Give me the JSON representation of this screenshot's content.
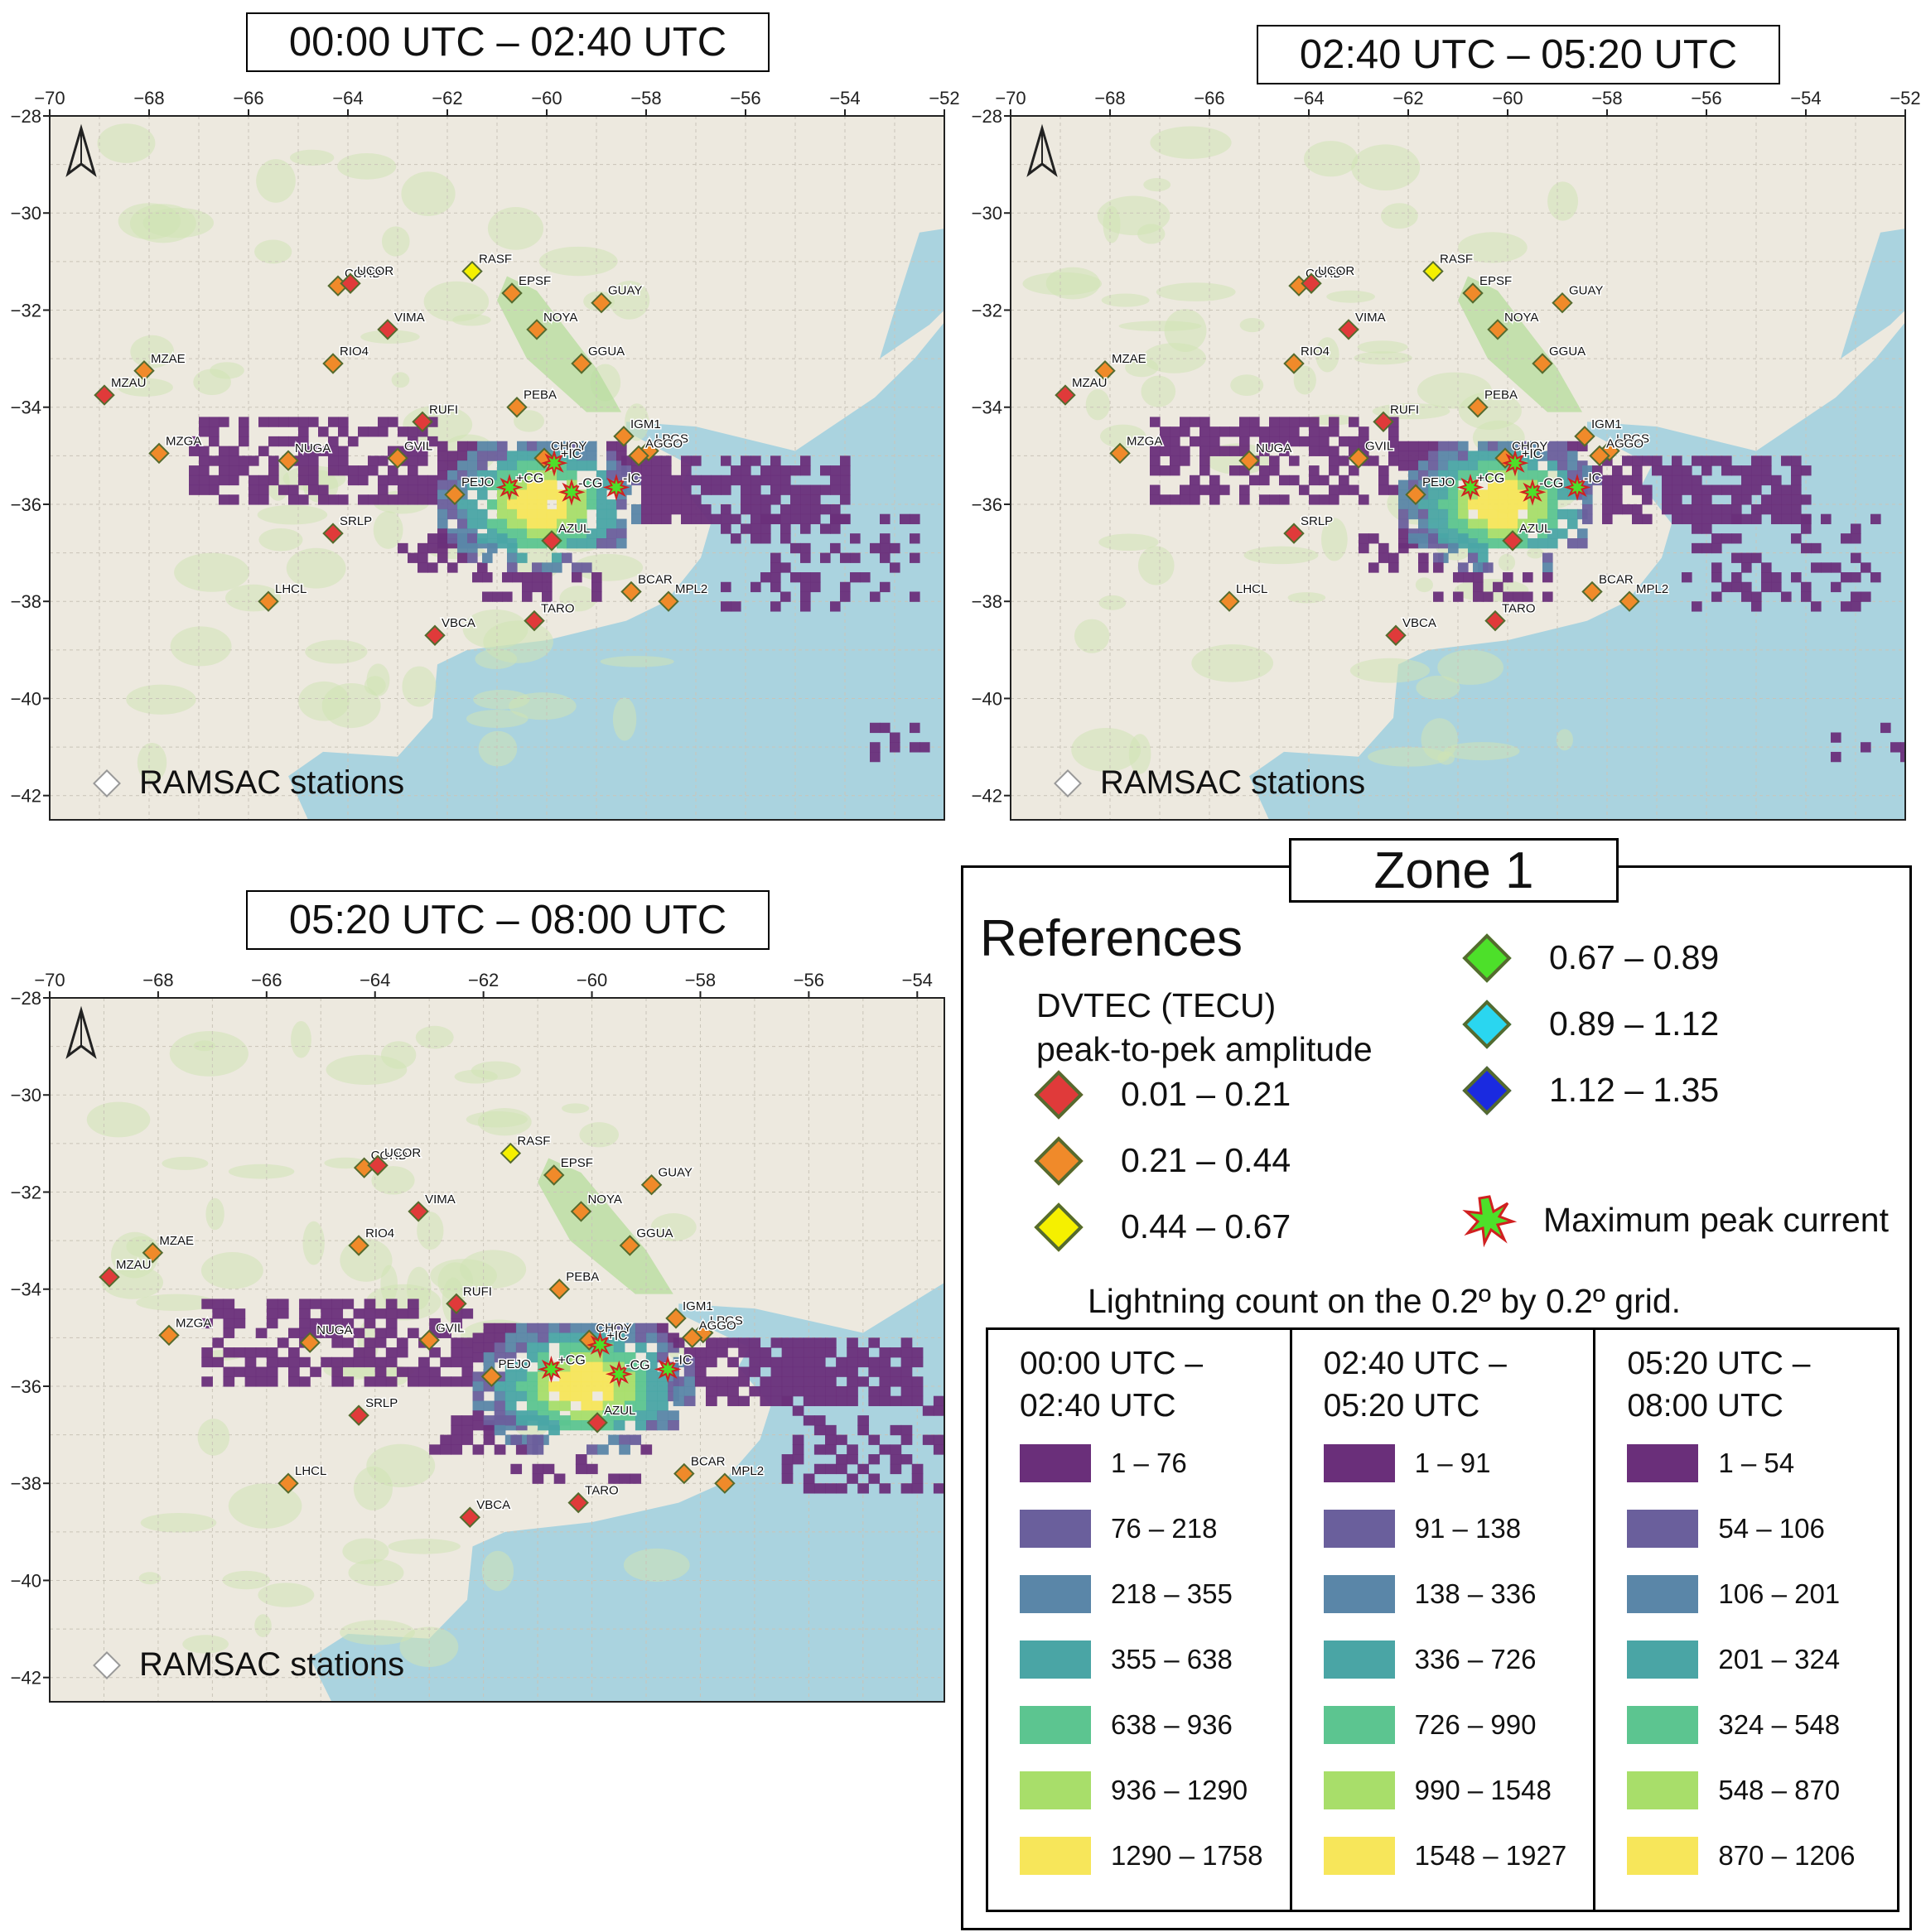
{
  "panels": [
    {
      "title": "00:00 UTC – 02:40 UTC",
      "x_ticks": [
        "−70",
        "−68",
        "−66",
        "−64",
        "−62",
        "−60",
        "−58",
        "−56",
        "−54",
        "−52"
      ],
      "y_ticks": [
        "−28",
        "−30",
        "−32",
        "−34",
        "−36",
        "−38",
        "−40",
        "−42"
      ],
      "lon_range": [
        -70,
        -52
      ],
      "lat_range": [
        -28,
        -42.5
      ],
      "stations_label": "RAMSAC stations"
    },
    {
      "title": "02:40 UTC – 05:20 UTC",
      "x_ticks": [
        "−70",
        "−68",
        "−66",
        "−64",
        "−62",
        "−60",
        "−58",
        "−56",
        "−54",
        "−52"
      ],
      "y_ticks": [
        "−28",
        "−30",
        "−32",
        "−34",
        "−36",
        "−38",
        "−40",
        "−42"
      ],
      "lon_range": [
        -70,
        -52
      ],
      "lat_range": [
        -28,
        -42.5
      ],
      "stations_label": "RAMSAC stations"
    },
    {
      "title": "05:20 UTC – 08:00 UTC",
      "x_ticks": [
        "−70",
        "−68",
        "−66",
        "−64",
        "−62",
        "−60",
        "−58",
        "−56",
        "−54"
      ],
      "y_ticks": [
        "−28",
        "−30",
        "−32",
        "−34",
        "−36",
        "−38",
        "−40",
        "−42"
      ],
      "lon_range": [
        -70,
        -53.5
      ],
      "lat_range": [
        -28,
        -42.5
      ],
      "stations_label": "RAMSAC stations"
    }
  ],
  "stations": [
    {
      "name": "CORD",
      "lon": -64.2,
      "lat": -31.5,
      "level": "orange"
    },
    {
      "name": "UCOR",
      "lon": -63.95,
      "lat": -31.45,
      "level": "red"
    },
    {
      "name": "RASF",
      "lon": -61.5,
      "lat": -31.2,
      "level": "yellow"
    },
    {
      "name": "EPSF",
      "lon": -60.7,
      "lat": -31.65,
      "level": "orange"
    },
    {
      "name": "GUAY",
      "lon": -58.9,
      "lat": -31.85,
      "level": "orange"
    },
    {
      "name": "VIMA",
      "lon": -63.2,
      "lat": -32.4,
      "level": "red"
    },
    {
      "name": "NOYA",
      "lon": -60.2,
      "lat": -32.4,
      "level": "orange"
    },
    {
      "name": "RIO4",
      "lon": -64.3,
      "lat": -33.1,
      "level": "orange"
    },
    {
      "name": "GGUA",
      "lon": -59.3,
      "lat": -33.1,
      "level": "orange"
    },
    {
      "name": "MZAE",
      "lon": -68.1,
      "lat": -33.25,
      "level": "orange"
    },
    {
      "name": "MZAU",
      "lon": -68.9,
      "lat": -33.75,
      "level": "red"
    },
    {
      "name": "RUFI",
      "lon": -62.5,
      "lat": -34.3,
      "level": "red"
    },
    {
      "name": "PEBA",
      "lon": -60.6,
      "lat": -34.0,
      "level": "orange"
    },
    {
      "name": "IGM1",
      "lon": -58.45,
      "lat": -34.6,
      "level": "orange"
    },
    {
      "name": "LPGS",
      "lon": -57.95,
      "lat": -34.9,
      "level": "orange"
    },
    {
      "name": "AGGO",
      "lon": -58.15,
      "lat": -35.0,
      "level": "orange"
    },
    {
      "name": "CHOY",
      "lon": -60.05,
      "lat": -35.05,
      "level": "orange"
    },
    {
      "name": "MZGA",
      "lon": -67.8,
      "lat": -34.95,
      "level": "orange"
    },
    {
      "name": "NUGA",
      "lon": -65.2,
      "lat": -35.1,
      "level": "orange"
    },
    {
      "name": "GVIL",
      "lon": -63.0,
      "lat": -35.05,
      "level": "orange"
    },
    {
      "name": "PEJO",
      "lon": -61.85,
      "lat": -35.8,
      "level": "orange"
    },
    {
      "name": "SRLP",
      "lon": -64.3,
      "lat": -36.6,
      "level": "red"
    },
    {
      "name": "AZUL",
      "lon": -59.9,
      "lat": -36.75,
      "level": "red"
    },
    {
      "name": "BCAR",
      "lon": -58.3,
      "lat": -37.8,
      "level": "orange"
    },
    {
      "name": "MPL2",
      "lon": -57.55,
      "lat": -38.0,
      "level": "orange"
    },
    {
      "name": "LHCL",
      "lon": -65.6,
      "lat": -38.0,
      "level": "orange"
    },
    {
      "name": "TARO",
      "lon": -60.25,
      "lat": -38.4,
      "level": "red"
    },
    {
      "name": "VBCA",
      "lon": -62.25,
      "lat": -38.7,
      "level": "red"
    }
  ],
  "peaks": [
    {
      "label": "+IC",
      "lon": -59.85,
      "lat": -35.15
    },
    {
      "label": "+CG",
      "lon": -60.75,
      "lat": -35.65
    },
    {
      "label": "-CG",
      "lon": -59.5,
      "lat": -35.75
    },
    {
      "label": "-IC",
      "lon": -58.6,
      "lat": -35.65
    }
  ],
  "legend": {
    "zone": "Zone 1",
    "title": "References",
    "dvtec_head_1": "DVTEC (TECU)",
    "dvtec_head_2": "peak-to-pek amplitude",
    "dvtec_items": [
      {
        "range": "0.01 – 0.21",
        "color": "#e03a3a"
      },
      {
        "range": "0.21 – 0.44",
        "color": "#f08a2a"
      },
      {
        "range": "0.44 – 0.67",
        "color": "#f5f000"
      },
      {
        "range": "0.67 – 0.89",
        "color": "#4de02a"
      },
      {
        "range": "0.89 – 1.12",
        "color": "#2ad6f0"
      },
      {
        "range": "1.12 – 1.35",
        "color": "#1a2ae0"
      }
    ],
    "peak_label": "Maximum peak current",
    "grid_title": "Lightning count on the 0.2º by 0.2º grid.",
    "grid_columns": [
      {
        "head1": "00:00 UTC –",
        "head2": "02:40 UTC",
        "ranges": [
          "1 – 76",
          "76 – 218",
          "218 – 355",
          "355 – 638",
          "638 – 936",
          "936 – 1290",
          "1290 – 1758"
        ]
      },
      {
        "head1": "02:40 UTC –",
        "head2": "05:20 UTC",
        "ranges": [
          "1 – 91",
          "91 – 138",
          "138 – 336",
          "336 – 726",
          "726 – 990",
          "990 – 1548",
          "1548 – 1927"
        ]
      },
      {
        "head1": "05:20 UTC –",
        "head2": "08:00 UTC",
        "ranges": [
          "1 – 54",
          "54 – 106",
          "106 – 201",
          "201 – 324",
          "324 – 548",
          "548 – 870",
          "870 – 1206"
        ]
      }
    ],
    "grid_colors": [
      "#6a2f7a",
      "#6a5f9c",
      "#5a86a8",
      "#4aa5a5",
      "#5cc590",
      "#a8de6a",
      "#f7e65a"
    ]
  }
}
